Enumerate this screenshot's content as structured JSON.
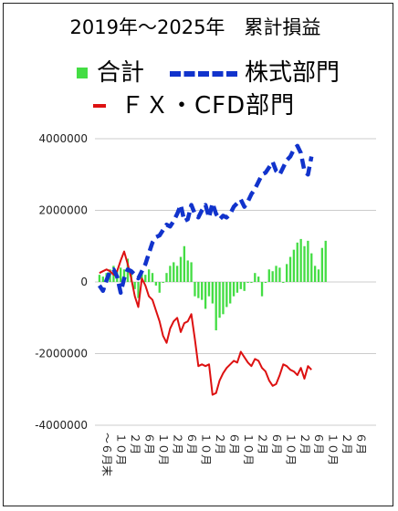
{
  "chart_data": {
    "type": "bar+line",
    "title": "2019年～2025年　累計損益",
    "legend": [
      {
        "name": "合計",
        "color": "#44dd44",
        "style": "bar"
      },
      {
        "name": "株式部門",
        "color": "#1133cc",
        "style": "dashed-line"
      },
      {
        "name": "ＦＸ・CFD部門",
        "color": "#dd1111",
        "style": "line"
      }
    ],
    "ylim": [
      -4000000,
      4000000
    ],
    "yticks": [
      4000000,
      2000000,
      0,
      -2000000,
      -4000000
    ],
    "ytick_labels": [
      "4000000",
      "2000000",
      "0",
      "-2000000",
      "-4000000"
    ],
    "n_months": 78,
    "x_tick_labels": [
      "～６月末",
      "１０月",
      "２月",
      "６月",
      "１０月",
      "２月",
      "６月",
      "１０月",
      "２月",
      "６月",
      "１０月",
      "２月",
      "６月",
      "１０月",
      "２月",
      "６月",
      "１０月",
      "２月",
      "６月"
    ],
    "grid": true,
    "series": [
      {
        "name": "合計",
        "values": [
          200000,
          150000,
          250000,
          350000,
          450000,
          300000,
          400000,
          350000,
          650000,
          250000,
          -200000,
          -450000,
          250000,
          200000,
          350000,
          250000,
          -100000,
          -300000,
          0,
          250000,
          450000,
          550000,
          450000,
          700000,
          1000000,
          600000,
          550000,
          -400000,
          -450000,
          -500000,
          -750000,
          -400000,
          -600000,
          -1350000,
          -1000000,
          -900000,
          -700000,
          -600000,
          -400000,
          -300000,
          -200000,
          -250000,
          0,
          0,
          250000,
          150000,
          -400000,
          0,
          350000,
          300000,
          450000,
          400000,
          0,
          500000,
          700000,
          900000,
          1100000,
          1200000,
          1000000,
          1150000,
          800000,
          450000,
          350000,
          950000,
          1150000
        ],
        "x_start": 0
      },
      {
        "name": "株式部門",
        "values": [
          -100000,
          -250000,
          50000,
          300000,
          350000,
          150000,
          -300000,
          100000,
          350000,
          300000,
          200000,
          100000,
          300000,
          500000,
          800000,
          1100000,
          1250000,
          1300000,
          1450000,
          1600000,
          1550000,
          1700000,
          1900000,
          2150000,
          1700000,
          1750000,
          2150000,
          1900000,
          1800000,
          2000000,
          2150000,
          1800000,
          2200000,
          1900000,
          1750000,
          1850000,
          1800000,
          1900000,
          2100000,
          2200000,
          2300000,
          2100000,
          2250000,
          2450000,
          2600000,
          2800000,
          3000000,
          3050000,
          3200000,
          3350000,
          3100000,
          3000000,
          3200000,
          3400000,
          3500000,
          3700000,
          3800000,
          3600000,
          3100000,
          3000000,
          3500000
        ],
        "x_start": 0
      },
      {
        "name": "ＦＸ・CFD部門",
        "values": [
          250000,
          300000,
          350000,
          300000,
          200000,
          300000,
          600000,
          850000,
          500000,
          100000,
          -400000,
          -700000,
          100000,
          -100000,
          -400000,
          -500000,
          -800000,
          -1100000,
          -1500000,
          -1700000,
          -1300000,
          -1100000,
          -1000000,
          -1400000,
          -1150000,
          -1100000,
          -900000,
          -1600000,
          -2350000,
          -2300000,
          -2350000,
          -2300000,
          -3150000,
          -3100000,
          -2750000,
          -2550000,
          -2400000,
          -2300000,
          -2200000,
          -2250000,
          -1950000,
          -2100000,
          -2250000,
          -2350000,
          -2150000,
          -2200000,
          -2400000,
          -2500000,
          -2750000,
          -2900000,
          -2850000,
          -2600000,
          -2300000,
          -2350000,
          -2450000,
          -2500000,
          -2600000,
          -2400000,
          -2700000,
          -2350000,
          -2450000
        ],
        "x_start": 0
      }
    ]
  }
}
